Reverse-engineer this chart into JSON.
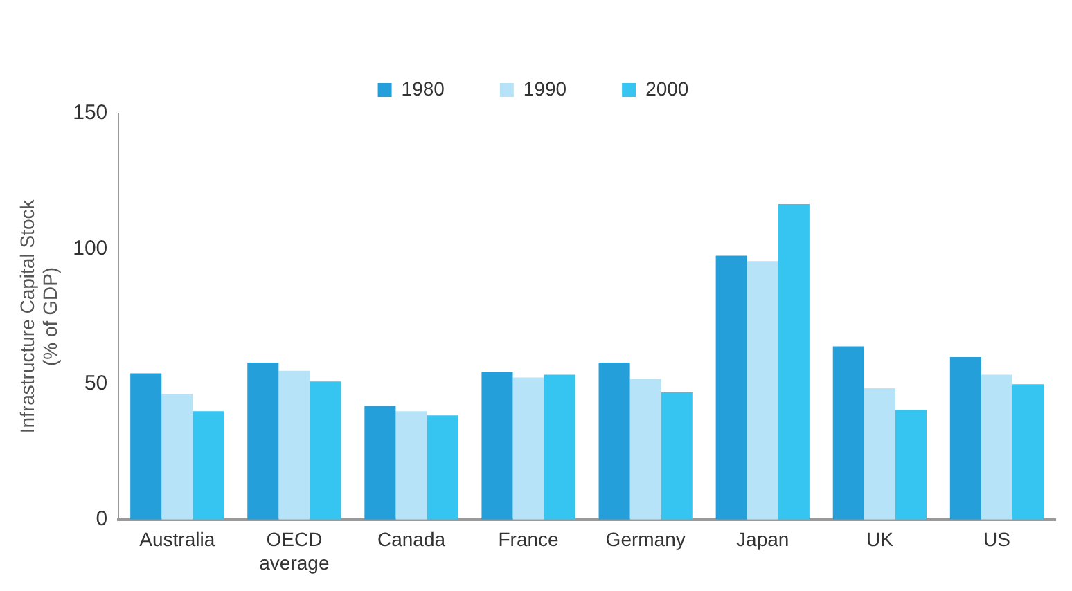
{
  "chart_data": {
    "type": "bar",
    "ylabel": "Infrastructure Capital Stock (% of GDP)",
    "categories": [
      "Australia",
      "OECD average",
      "Canada",
      "France",
      "Germany",
      "Japan",
      "UK",
      "US"
    ],
    "series": [
      {
        "name": "1980",
        "color": "#259fd9",
        "values": [
          54,
          58,
          42,
          54.5,
          58,
          97.5,
          64,
          60
        ]
      },
      {
        "name": "1990",
        "color": "#b7e3f8",
        "values": [
          46.5,
          55,
          40,
          52.5,
          52,
          95.5,
          48.5,
          53.5
        ]
      },
      {
        "name": "2000",
        "color": "#35c5f0",
        "values": [
          40,
          51,
          38.5,
          53.5,
          47,
          116.5,
          40.5,
          50
        ]
      }
    ],
    "ylim": [
      0,
      150
    ],
    "yticks": [
      0,
      50,
      100,
      150
    ],
    "grid": false,
    "legend": "top"
  }
}
